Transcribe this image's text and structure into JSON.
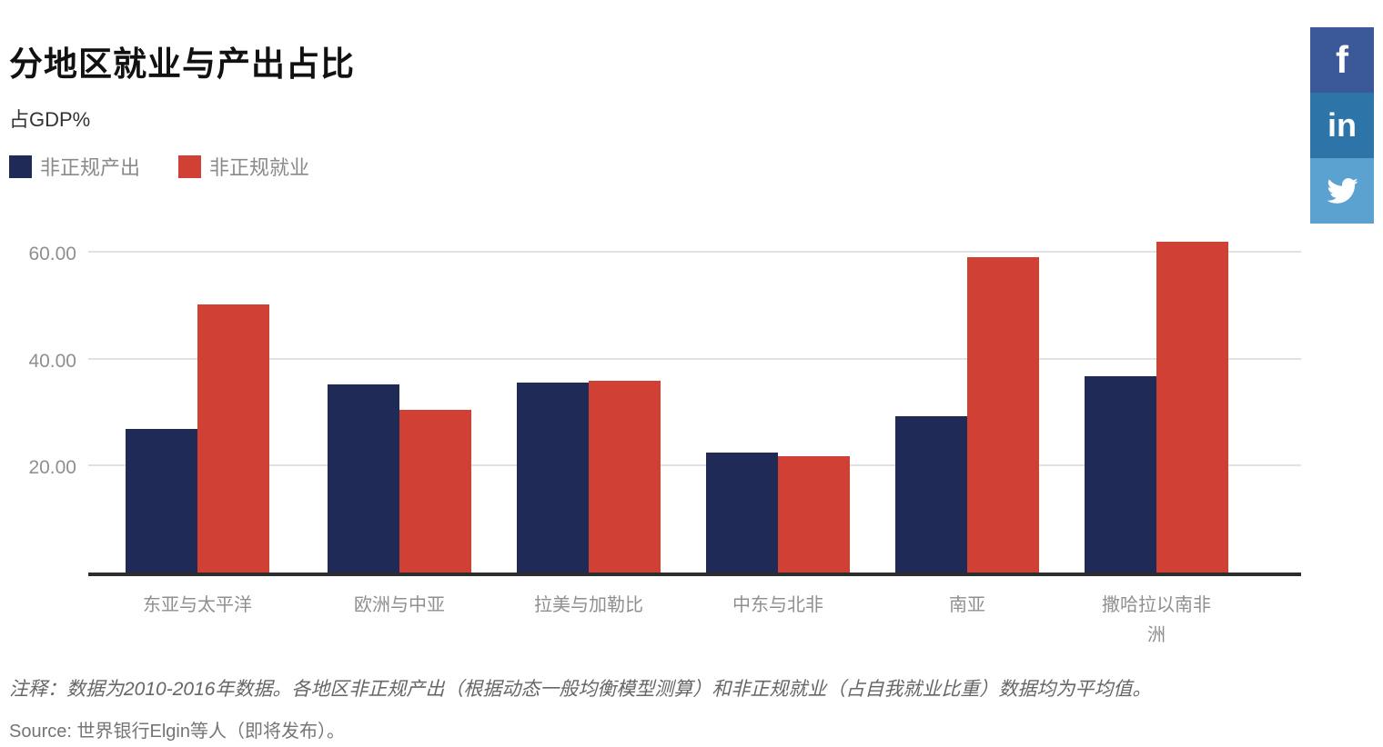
{
  "title": "分地区就业与产出占比",
  "subtitle": "占GDP%",
  "chart_data": {
    "type": "bar",
    "title": "分地区就业与产出占比",
    "ylabel": "占GDP%",
    "xlabel": "",
    "categories": [
      "东亚与太平洋",
      "欧洲与中亚",
      "拉美与加勒比",
      "中东与北非",
      "南亚",
      "撒哈拉以南非洲"
    ],
    "series": [
      {
        "name": "非正规产出",
        "color": "#1f2a56",
        "values": [
          26.8,
          35.3,
          35.6,
          22.5,
          29.2,
          36.8
        ]
      },
      {
        "name": "非正规就业",
        "color": "#d14034",
        "values": [
          50.2,
          30.5,
          35.9,
          21.7,
          59.0,
          62.0
        ]
      }
    ],
    "yticks": [
      20,
      40,
      60
    ],
    "ytick_labels": [
      "20.00",
      "40.00",
      "60.00"
    ],
    "ylim": [
      0,
      65
    ],
    "grid": "horizontal",
    "legend_position": "top-left"
  },
  "footer": {
    "note": "注释：数据为2010-2016年数据。各地区非正规产出（根据动态一般均衡模型测算）和非正规就业（占自我就业比重）数据均为平均值。",
    "source": "Source: 世界银行Elgin等人（即将发布）。"
  },
  "social": {
    "buttons": [
      {
        "name": "facebook",
        "glyph": "f",
        "color": "#3b5998"
      },
      {
        "name": "linkedin",
        "glyph": "in",
        "color": "#2d74a9"
      },
      {
        "name": "twitter",
        "glyph": "bird",
        "color": "#5ba2d0"
      }
    ]
  }
}
